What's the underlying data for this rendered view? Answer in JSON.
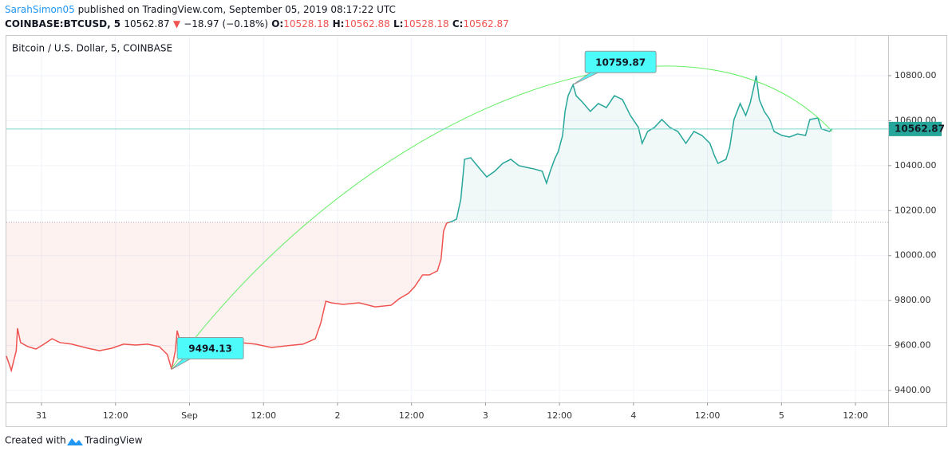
{
  "header": {
    "author": "SarahSimon05",
    "published": "published on TradingView.com, September 05, 2019 08:17:22 UTC",
    "symbol": "COINBASE:BTCUSD, 5",
    "price": 10562.87,
    "arrow": "▼",
    "change": "−18.97 (−0.18%)",
    "o_label": "O:",
    "open": 10528.18,
    "h_label": "H:",
    "high": 10562.88,
    "l_label": "L:",
    "low": 10528.18,
    "c_label": "C:",
    "close": 10562.87
  },
  "chart_data": {
    "type": "line",
    "title": "Bitcoin / U.S. Dollar, 5, COINBASE",
    "x": [
      -5.7,
      -4.9,
      -4.1,
      -3.9,
      -3.4,
      -2.2,
      -0.9,
      0.4,
      1.7,
      3.0,
      4.9,
      7.5,
      9.4,
      11.4,
      13.3,
      15.3,
      17.2,
      19.1,
      20.4,
      21.1,
      21.7,
      22.0,
      22.5,
      24.3,
      26.9,
      29.5,
      32.1,
      34.7,
      37.3,
      39.8,
      42.4,
      44.4,
      45.3,
      46.1,
      47.0,
      48.9,
      51.5,
      54.1,
      56.7,
      58.0,
      59.5,
      60.5,
      61.8,
      62.9,
      64.2,
      64.8,
      65.2,
      65.7,
      66.5,
      67.3,
      68.0,
      68.6,
      69.6,
      70.9,
      72.2,
      73.5,
      74.8,
      76.1,
      77.4,
      78.7,
      79.9,
      81.2,
      81.9,
      82.5,
      83.2,
      83.8,
      84.5,
      84.9,
      85.4,
      86.2,
      86.7,
      87.7,
      89.0,
      90.3,
      91.6,
      92.9,
      94.2,
      95.5,
      96.8,
      97.4,
      98.3,
      99.4,
      100.6,
      101.9,
      103.2,
      104.5,
      105.8,
      107.1,
      108.4,
      109.1,
      109.7,
      111.0,
      111.6,
      112.3,
      113.3,
      114.2,
      114.9,
      115.5,
      115.9,
      116.4,
      117.2,
      118.1,
      118.8,
      120.1,
      121.3,
      122.6,
      123.9,
      124.6,
      125.9,
      126.5,
      127.8,
      128.2
    ],
    "series": [
      {
        "name": "BTCUSD",
        "color": "#26a69a",
        "color_below": "#ef5350",
        "values": [
          9553,
          9489,
          9577,
          9677,
          9613,
          9595,
          9584,
          9606,
          9630,
          9613,
          9606,
          9588,
          9577,
          9588,
          9606,
          9602,
          9606,
          9595,
          9560,
          9494.13,
          9577,
          9666,
          9613,
          9606,
          9613,
          9630,
          9613,
          9606,
          9591,
          9599,
          9606,
          9630,
          9701,
          9797,
          9790,
          9783,
          9790,
          9772,
          9779,
          9808,
          9832,
          9861,
          9914,
          9914,
          9932,
          9985,
          10109,
          10144,
          10151,
          10162,
          10251,
          10428,
          10435,
          10392,
          10350,
          10375,
          10410,
          10428,
          10400,
          10392,
          10385,
          10375,
          10322,
          10375,
          10428,
          10463,
          10534,
          10641,
          10711,
          10759.87,
          10711,
          10683,
          10641,
          10676,
          10658,
          10711,
          10694,
          10623,
          10570,
          10499,
          10552,
          10570,
          10605,
          10570,
          10552,
          10499,
          10552,
          10534,
          10499,
          10446,
          10410,
          10428,
          10481,
          10605,
          10676,
          10623,
          10676,
          10747,
          10800,
          10694,
          10641,
          10605,
          10552,
          10534,
          10527,
          10541,
          10534,
          10605,
          10612,
          10563,
          10552,
          10562.87
        ]
      }
    ],
    "baseline": 10148,
    "last_price": 10562.87,
    "annotations": [
      {
        "x": 86.2,
        "y": 10759.87
      },
      {
        "x": 21.1,
        "y": 9494.13
      }
    ],
    "xlim": [
      -5.7,
      137.3
    ],
    "xticks": [
      {
        "value": 0,
        "label": "31"
      },
      {
        "value": 12,
        "label": "12:00"
      },
      {
        "value": 24,
        "label": "Sep"
      },
      {
        "value": 36,
        "label": "12:00"
      },
      {
        "value": 48,
        "label": "2"
      },
      {
        "value": 60,
        "label": "12:00"
      },
      {
        "value": 72,
        "label": "3"
      },
      {
        "value": 84,
        "label": "12:00"
      },
      {
        "value": 96,
        "label": "4"
      },
      {
        "value": 108,
        "label": "12:00"
      },
      {
        "value": 120,
        "label": "5"
      },
      {
        "value": 132,
        "label": "12:00"
      }
    ],
    "ylim": [
      9347,
      10977
    ],
    "yticks": [
      {
        "value": 9400,
        "label": "9400.00"
      },
      {
        "value": 9600,
        "label": "9600.00"
      },
      {
        "value": 9800,
        "label": "9800.00"
      },
      {
        "value": 10000,
        "label": "10000.00"
      },
      {
        "value": 10200,
        "label": "10200.00"
      },
      {
        "value": 10400,
        "label": "10400.00"
      },
      {
        "value": 10600,
        "label": "10600.00"
      },
      {
        "value": 10800,
        "label": "10800.00"
      }
    ],
    "grid": true
  },
  "footer": {
    "created": "Created with",
    "brand": "TradingView"
  }
}
